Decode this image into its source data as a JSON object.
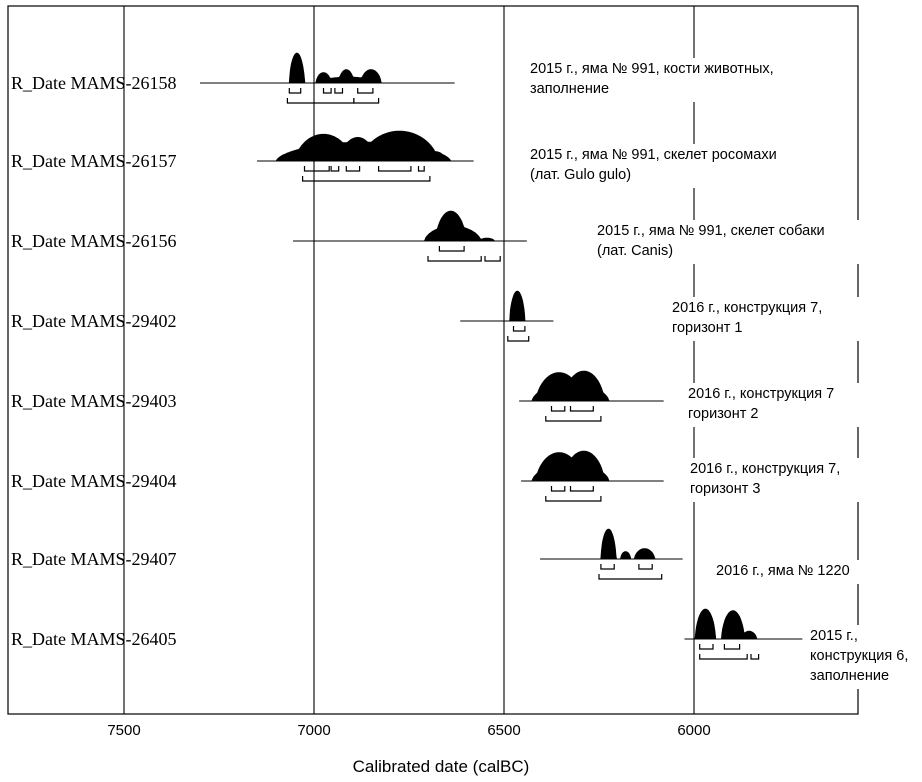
{
  "chart_data": {
    "type": "multiplot",
    "xlabel": "Calibrated date (calBC)",
    "xlim": [
      7750,
      5550
    ],
    "x_reversed": true,
    "grid": "vertical",
    "xticks": [
      7500,
      7000,
      6500,
      6000
    ],
    "series": [
      {
        "name": "R_Date MAMS-26158",
        "line": [
          7300,
          6630
        ],
        "peaks": [
          [
            7060,
            7030,
            1.0
          ],
          [
            6990,
            6960,
            0.35
          ],
          [
            6930,
            6900,
            0.45
          ],
          [
            6870,
            6830,
            0.45
          ],
          [
            6970,
            6850,
            0.2
          ]
        ],
        "range68": [
          [
            7065,
            7035
          ],
          [
            6975,
            6955
          ],
          [
            6945,
            6925
          ],
          [
            6885,
            6845
          ]
        ],
        "range95": [
          [
            7070,
            6895
          ],
          [
            6895,
            6830
          ]
        ],
        "note": [
          "2015 г., яма № 991, кости животных,",
          "заполнение"
        ]
      },
      {
        "name": "R_Date MAMS-26157",
        "line": [
          7150,
          6580
        ],
        "peaks": [
          [
            7030,
            6920,
            0.85
          ],
          [
            6920,
            6850,
            0.75
          ],
          [
            6850,
            6700,
            0.95
          ],
          [
            6700,
            6660,
            0.3
          ],
          [
            7040,
            6700,
            0.6
          ]
        ],
        "range68": [
          [
            7025,
            6960
          ],
          [
            6955,
            6935
          ],
          [
            6915,
            6880
          ],
          [
            6830,
            6745
          ],
          [
            6725,
            6710
          ]
        ],
        "range95": [
          [
            7030,
            6695
          ]
        ],
        "note": [
          "2015 г., яма № 991, скелет росомахи",
          "(лат. Gulo gulo)"
        ]
      },
      {
        "name": "R_Date MAMS-26156",
        "line": [
          7055,
          6440
        ],
        "peaks": [
          [
            6670,
            6610,
            1.0
          ],
          [
            6690,
            6580,
            0.5
          ],
          [
            6560,
            6530,
            0.1
          ]
        ],
        "range68": [
          [
            6670,
            6605
          ]
        ],
        "range95": [
          [
            6700,
            6560
          ],
          [
            6550,
            6510
          ]
        ],
        "note": [
          "2015 г., яма № 991, скелет собаки",
          "(лат. Canis)"
        ]
      },
      {
        "name": "R_Date MAMS-29402",
        "line": [
          6615,
          6370
        ],
        "peaks": [
          [
            6480,
            6450,
            1.0
          ]
        ],
        "range68": [
          [
            6475,
            6445
          ]
        ],
        "range95": [
          [
            6490,
            6435
          ]
        ],
        "note": [
          "2016 г., конструкция 7,",
          "горизонт 1"
        ]
      },
      {
        "name": "R_Date MAMS-29403",
        "line": [
          6460,
          6080
        ],
        "peaks": [
          [
            6400,
            6310,
            0.95
          ],
          [
            6330,
            6250,
            1.0
          ],
          [
            6400,
            6250,
            0.6
          ]
        ],
        "range68": [
          [
            6375,
            6340
          ],
          [
            6325,
            6265
          ]
        ],
        "range95": [
          [
            6390,
            6245
          ]
        ],
        "note": [
          "2016 г., конструкция 7",
          "горизонт 2"
        ]
      },
      {
        "name": "R_Date MAMS-29404",
        "line": [
          6455,
          6080
        ],
        "peaks": [
          [
            6400,
            6310,
            0.95
          ],
          [
            6330,
            6250,
            1.0
          ],
          [
            6400,
            6250,
            0.6
          ]
        ],
        "range68": [
          [
            6375,
            6340
          ],
          [
            6325,
            6265
          ]
        ],
        "range95": [
          [
            6390,
            6245
          ]
        ],
        "note": [
          "2016 г., конструкция 7,",
          "горизонт 3"
        ]
      },
      {
        "name": "R_Date MAMS-29407",
        "line": [
          6405,
          6030
        ],
        "peaks": [
          [
            6240,
            6210,
            1.0
          ],
          [
            6190,
            6170,
            0.25
          ],
          [
            6150,
            6110,
            0.35
          ]
        ],
        "range68": [
          [
            6245,
            6210
          ],
          [
            6145,
            6110
          ]
        ],
        "range95": [
          [
            6250,
            6085
          ]
        ],
        "note": [
          "2016 г., яма № 1220"
        ]
      },
      {
        "name": "R_Date MAMS-26405",
        "line": [
          6025,
          5715
        ],
        "peaks": [
          [
            5990,
            5950,
            0.95
          ],
          [
            5920,
            5875,
            0.9
          ],
          [
            5870,
            5840,
            0.25
          ]
        ],
        "range68": [
          [
            5985,
            5950
          ],
          [
            5920,
            5880
          ]
        ],
        "range95": [
          [
            5985,
            5860
          ],
          [
            5850,
            5830
          ]
        ],
        "note": [
          "2015 г.,",
          "конструкция 6,",
          "заполнение"
        ]
      }
    ]
  }
}
